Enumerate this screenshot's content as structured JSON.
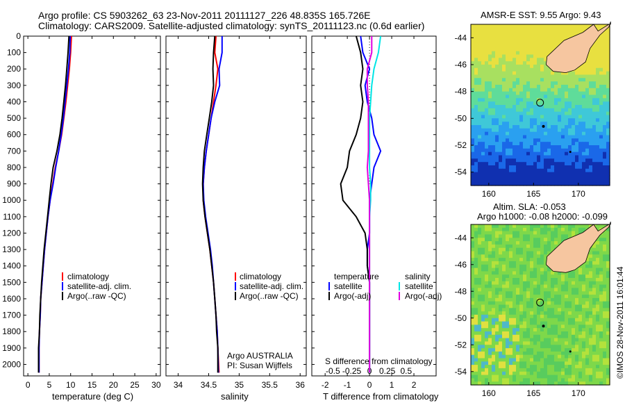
{
  "header": {
    "line1": "Argo profile: CS 5903262_63 23-Nov-2011 20111127_226 48.835S 165.726E",
    "line2": "Climatology: CARS2009. Satellite-adjusted climatology: synTS_20111123.nc (0.6d earlier)"
  },
  "colors": {
    "climatology": "#ff0000",
    "satellite": "#0000ff",
    "argo": "#000000",
    "salinity_sat": "#00e5e5",
    "salinity_argo": "#e000e0",
    "land": "#f6c6a0"
  },
  "chart_data": [
    {
      "type": "line",
      "xlabel": "temperature (deg C)",
      "xticks": [
        0,
        5,
        10,
        15,
        20,
        25,
        30
      ],
      "xlim": [
        -1,
        31
      ],
      "ylim": [
        2070,
        0
      ],
      "yticks": [
        0,
        100,
        200,
        300,
        400,
        500,
        600,
        700,
        800,
        900,
        1000,
        1100,
        1200,
        1300,
        1400,
        1500,
        1600,
        1700,
        1800,
        1900,
        2000
      ],
      "legend": [
        "climatology",
        "satellite-adj. clim.",
        "Argo(..raw -QC)"
      ],
      "series": [
        {
          "name": "climatology",
          "color": "#ff0000",
          "x": [
            10.2,
            10.0,
            9.7,
            9.3,
            8.9,
            8.4,
            7.9,
            7.2,
            6.4,
            5.8,
            5.2,
            4.7,
            4.3,
            3.9,
            3.6,
            3.3,
            3.0,
            2.9,
            2.7,
            2.6,
            2.6
          ],
          "y": [
            0,
            100,
            200,
            300,
            400,
            500,
            600,
            700,
            800,
            900,
            1000,
            1100,
            1200,
            1300,
            1400,
            1500,
            1600,
            1700,
            1800,
            1900,
            2050
          ]
        },
        {
          "name": "satellite-adj. clim.",
          "color": "#0000ff",
          "x": [
            9.9,
            9.8,
            9.5,
            9.1,
            8.7,
            8.3,
            7.8,
            7.2,
            6.5,
            5.9,
            5.2,
            4.7,
            4.3,
            3.9,
            3.6,
            3.3,
            3.0,
            2.9,
            2.7,
            2.6,
            2.6
          ],
          "y": [
            0,
            100,
            200,
            300,
            400,
            500,
            600,
            700,
            800,
            900,
            1000,
            1100,
            1200,
            1300,
            1400,
            1500,
            1600,
            1700,
            1800,
            1900,
            2050
          ]
        },
        {
          "name": "Argo(..raw -QC)",
          "color": "#000000",
          "x": [
            9.6,
            9.4,
            9.1,
            8.8,
            8.4,
            8.0,
            7.5,
            6.8,
            5.9,
            5.4,
            5.0,
            4.6,
            4.2,
            3.8,
            3.5,
            3.2,
            3.0,
            2.8,
            2.7,
            2.5,
            2.5
          ],
          "y": [
            0,
            100,
            200,
            300,
            400,
            500,
            600,
            700,
            800,
            900,
            1000,
            1100,
            1200,
            1300,
            1400,
            1500,
            1600,
            1700,
            1800,
            1900,
            2050
          ]
        }
      ]
    },
    {
      "type": "line",
      "xlabel": "salinity",
      "xticks": [
        34,
        34.5,
        35,
        35.5,
        36
      ],
      "xlim": [
        33.8,
        36.1
      ],
      "ylim": [
        2070,
        0
      ],
      "legend": [
        "climatology",
        "satellite-adj. clim.",
        "Argo(..raw -QC)"
      ],
      "annotation": [
        "Argo AUSTRALIA",
        "PI: Susan Wijffels"
      ],
      "series": [
        {
          "name": "climatology",
          "color": "#ff0000",
          "x": [
            34.62,
            34.6,
            34.65,
            34.62,
            34.58,
            34.54,
            34.5,
            34.46,
            34.43,
            34.41,
            34.41,
            34.44,
            34.48,
            34.52,
            34.55,
            34.58,
            34.6,
            34.62,
            34.64,
            34.65,
            34.67
          ],
          "y": [
            0,
            100,
            200,
            300,
            400,
            500,
            600,
            700,
            800,
            900,
            1000,
            1100,
            1200,
            1300,
            1400,
            1500,
            1600,
            1700,
            1800,
            1900,
            2050
          ]
        },
        {
          "name": "satellite-adj. clim.",
          "color": "#0000ff",
          "x": [
            34.72,
            34.72,
            34.67,
            34.68,
            34.6,
            34.54,
            34.5,
            34.46,
            34.43,
            34.41,
            34.42,
            34.45,
            34.49,
            34.53,
            34.56,
            34.58,
            34.6,
            34.62,
            34.64,
            34.65,
            34.66
          ],
          "y": [
            0,
            100,
            200,
            300,
            400,
            500,
            600,
            700,
            800,
            900,
            1000,
            1100,
            1200,
            1300,
            1400,
            1500,
            1600,
            1700,
            1800,
            1900,
            2050
          ]
        },
        {
          "name": "Argo(..raw -QC)",
          "color": "#000000",
          "x": [
            34.6,
            34.58,
            34.57,
            34.58,
            34.55,
            34.51,
            34.47,
            34.43,
            34.41,
            34.4,
            34.41,
            34.44,
            34.48,
            34.52,
            34.55,
            34.58,
            34.6,
            34.62,
            34.63,
            34.65,
            34.65
          ],
          "y": [
            0,
            100,
            200,
            300,
            400,
            500,
            600,
            700,
            800,
            900,
            1000,
            1100,
            1200,
            1300,
            1400,
            1500,
            1600,
            1700,
            1800,
            1900,
            2050
          ]
        }
      ]
    },
    {
      "type": "line",
      "xlabel": "T difference from climatology",
      "xticks": [
        -2,
        -1,
        0,
        1,
        2
      ],
      "xlim": [
        -2.6,
        3.0
      ],
      "top_label": "S difference from climatology",
      "top_ticks": [
        {
          "label": "-0.5",
          "t": -1.65
        },
        {
          "label": "-0.25",
          "t": -0.8
        },
        {
          "label": "0",
          "t": 0
        },
        {
          "label": "0.25",
          "t": 0.8
        },
        {
          "label": "0.5",
          "t": 1.65
        }
      ],
      "ylim": [
        2070,
        0
      ],
      "legend_t": [
        "temperature",
        "satellite",
        "Argo(-adj)"
      ],
      "legend_s": [
        "salinity",
        "satellite",
        "Argo(-adj)"
      ],
      "series": [
        {
          "name": "temperature satellite",
          "color": "#0000ff",
          "x": [
            -0.4,
            -0.3,
            0.0,
            -0.2,
            -0.1,
            0.1,
            0.2,
            0.5,
            0.2,
            0.1,
            0.0,
            0.0,
            0.0,
            -0.1,
            -0.1,
            0.0,
            0.0,
            0.0,
            0.0,
            0.0,
            0.0
          ],
          "y": [
            0,
            100,
            200,
            300,
            400,
            500,
            600,
            700,
            800,
            900,
            1000,
            1100,
            1200,
            1300,
            1400,
            1500,
            1600,
            1700,
            1800,
            1900,
            2050
          ]
        },
        {
          "name": "temperature Argo",
          "color": "#000000",
          "x": [
            -0.6,
            -0.4,
            -0.3,
            -0.4,
            -0.3,
            -0.4,
            -0.6,
            -0.9,
            -1.0,
            -1.3,
            -1.2,
            -0.6,
            -0.2,
            -0.1,
            -0.1,
            0.0,
            0.0,
            0.0,
            0.0,
            0.0,
            0.0
          ],
          "y": [
            0,
            100,
            200,
            300,
            400,
            500,
            600,
            700,
            800,
            900,
            1000,
            1100,
            1200,
            1300,
            1400,
            1500,
            1600,
            1700,
            1800,
            1900,
            2050
          ]
        },
        {
          "name": "salinity satellite",
          "color": "#00e5e5",
          "x": [
            0.5,
            0.4,
            0.2,
            0.1,
            0.05,
            0.0,
            0.0,
            0.0,
            0.0,
            0.05,
            0.05,
            0.0,
            0.0,
            0.0,
            0.0,
            0.0,
            0.0,
            0.0,
            0.0,
            0.0,
            0.0
          ],
          "y": [
            0,
            100,
            200,
            300,
            400,
            500,
            600,
            700,
            800,
            900,
            1000,
            1100,
            1200,
            1300,
            1400,
            1500,
            1600,
            1700,
            1800,
            1900,
            2050
          ]
        },
        {
          "name": "salinity Argo",
          "color": "#e000e0",
          "x": [
            0.1,
            0.1,
            -0.1,
            -0.1,
            -0.05,
            -0.05,
            -0.05,
            -0.05,
            -0.1,
            -0.05,
            0.0,
            0.0,
            0.0,
            0.0,
            0.0,
            0.0,
            0.0,
            0.0,
            0.0,
            0.0,
            0.0
          ],
          "y": [
            0,
            100,
            200,
            300,
            400,
            500,
            600,
            700,
            800,
            900,
            1000,
            1100,
            1200,
            1300,
            1400,
            1500,
            1600,
            1700,
            1800,
            1900,
            2050
          ]
        }
      ]
    },
    {
      "type": "heatmap",
      "title": "AMSR-E SST: 9.55 Argo: 9.43",
      "xticks": [
        160,
        165,
        170
      ],
      "yticks": [
        -44,
        -46,
        -48,
        -50,
        -52,
        -54
      ],
      "xlim": [
        158,
        173.5
      ],
      "ylim": [
        -55,
        -43
      ]
    },
    {
      "type": "heatmap",
      "title": [
        "Altim. SLA: -0.053",
        "Argo h1000: -0.08 h2000: -0.099"
      ],
      "xticks": [
        160,
        165,
        170
      ],
      "yticks": [
        -44,
        -46,
        -48,
        -50,
        -52,
        -54
      ],
      "xlim": [
        158,
        173.5
      ],
      "ylim": [
        -55,
        -43
      ],
      "side_label": "©IMOS 28-Nov-2011 16:01:44"
    }
  ]
}
